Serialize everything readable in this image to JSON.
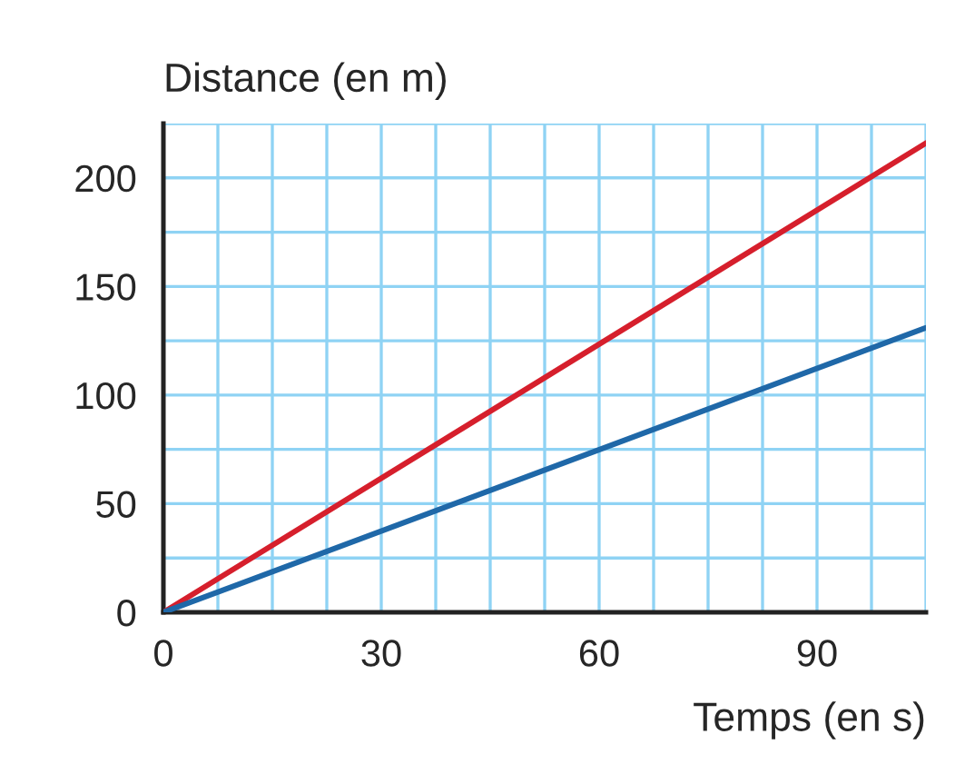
{
  "chart_data": {
    "type": "line",
    "xlabel": "Temps (en s)",
    "ylabel": "Distance (en m)",
    "x": [
      0,
      105
    ],
    "series": [
      {
        "color": "#d61f2c",
        "values": [
          0,
          216
        ]
      },
      {
        "color": "#1f68a8",
        "values": [
          0,
          131
        ]
      }
    ],
    "xlim": [
      0,
      105
    ],
    "ylim": [
      0,
      225
    ],
    "xticks": [
      0,
      {
        "value": 7.5,
        "label": null
      },
      {
        "value": 15,
        "label": null
      },
      {
        "value": 22.5,
        "label": null
      },
      30,
      {
        "value": 37.5,
        "label": null
      },
      {
        "value": 45,
        "label": null
      },
      {
        "value": 52.5,
        "label": null
      },
      60,
      {
        "value": 67.5,
        "label": null
      },
      {
        "value": 75,
        "label": null
      },
      {
        "value": 82.5,
        "label": null
      },
      90,
      {
        "value": 97.5,
        "label": null
      },
      {
        "value": 105,
        "label": null
      }
    ],
    "yticks": [
      0,
      {
        "value": 25,
        "label": null
      },
      50,
      {
        "value": 75,
        "label": null
      },
      100,
      {
        "value": 125,
        "label": null
      },
      150,
      {
        "value": 175,
        "label": null
      },
      200,
      {
        "value": 225,
        "label": null
      }
    ],
    "grid": true,
    "marker": "none",
    "line_style": "solid"
  }
}
